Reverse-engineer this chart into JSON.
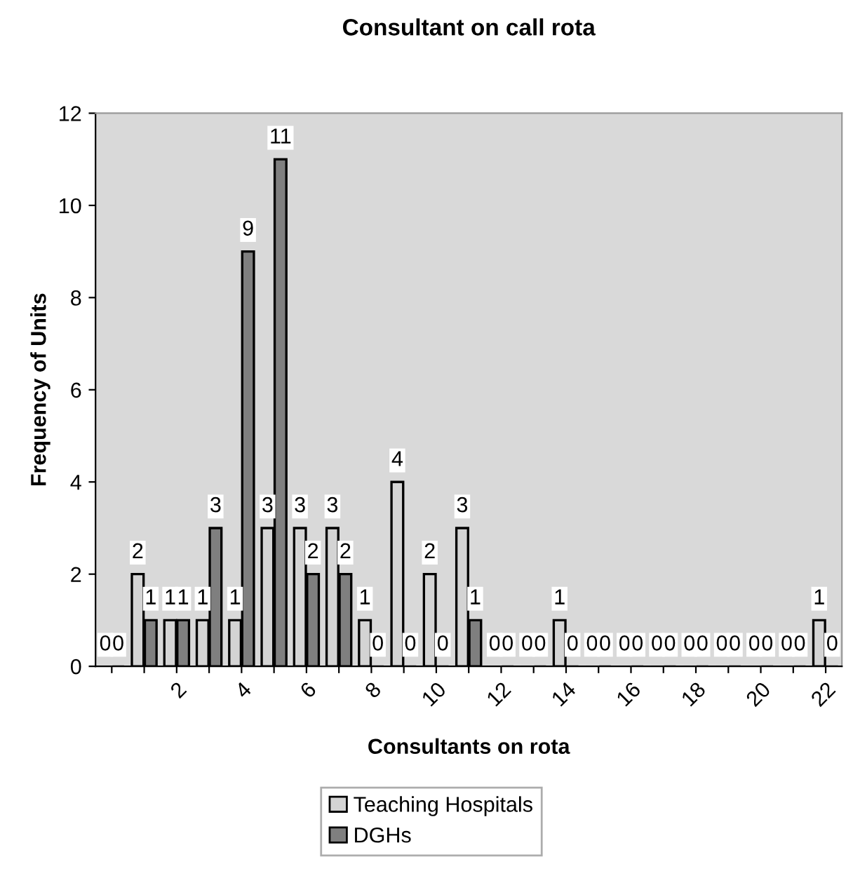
{
  "chart_data": {
    "type": "bar",
    "title": "Consultant on call rota",
    "xlabel": "Consultants on rota",
    "ylabel": "Frequency of Units",
    "categories": [
      null,
      null,
      "2",
      null,
      "4",
      null,
      "6",
      null,
      "8",
      null,
      "10",
      null,
      "12",
      null,
      "14",
      null,
      "16",
      null,
      "18",
      null,
      "20",
      null,
      "22"
    ],
    "series": [
      {
        "name": "Teaching Hospitals",
        "color": "#d4d4d4",
        "values": [
          0,
          2,
          1,
          1,
          1,
          3,
          3,
          3,
          1,
          4,
          2,
          3,
          0,
          0,
          1,
          0,
          0,
          0,
          0,
          0,
          0,
          0,
          1
        ]
      },
      {
        "name": "DGHs",
        "color": "#7f7f7f",
        "values": [
          0,
          1,
          1,
          3,
          9,
          11,
          2,
          2,
          0,
          0,
          0,
          1,
          0,
          0,
          0,
          0,
          0,
          0,
          0,
          0,
          0,
          0,
          0
        ]
      }
    ],
    "ylim": [
      0,
      12
    ],
    "yticks": [
      0,
      2,
      4,
      6,
      8,
      10,
      12
    ],
    "grid": false,
    "legend": "bottom",
    "data_labels": true
  }
}
